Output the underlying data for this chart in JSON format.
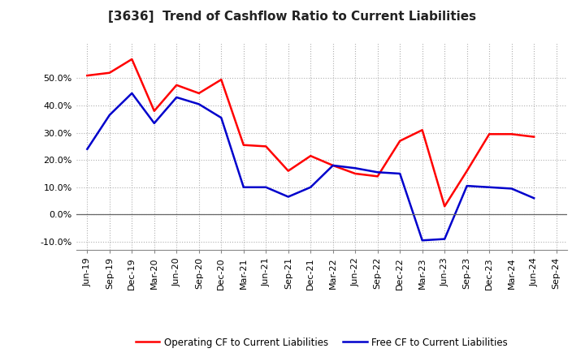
{
  "title": "[3636]  Trend of Cashflow Ratio to Current Liabilities",
  "x_labels": [
    "Jun-19",
    "Sep-19",
    "Dec-19",
    "Mar-20",
    "Jun-20",
    "Sep-20",
    "Dec-20",
    "Mar-21",
    "Jun-21",
    "Sep-21",
    "Dec-21",
    "Mar-22",
    "Jun-22",
    "Sep-22",
    "Dec-22",
    "Mar-23",
    "Jun-23",
    "Sep-23",
    "Dec-23",
    "Mar-24",
    "Jun-24",
    "Sep-24"
  ],
  "operating_cf": [
    51.0,
    52.0,
    57.0,
    38.0,
    47.5,
    44.5,
    49.5,
    25.5,
    25.0,
    16.0,
    21.5,
    18.0,
    15.0,
    14.0,
    27.0,
    31.0,
    3.0,
    16.0,
    29.5,
    29.5,
    28.5,
    null
  ],
  "free_cf": [
    24.0,
    36.5,
    44.5,
    33.5,
    43.0,
    40.5,
    35.5,
    10.0,
    10.0,
    6.5,
    10.0,
    18.0,
    17.0,
    15.5,
    15.0,
    -9.5,
    -9.0,
    10.5,
    10.0,
    9.5,
    6.0,
    null
  ],
  "operating_color": "#ff0000",
  "free_color": "#0000cc",
  "ylim": [
    -0.13,
    0.63
  ],
  "yticks": [
    -0.1,
    0.0,
    0.1,
    0.2,
    0.3,
    0.4,
    0.5
  ],
  "ytick_labels": [
    "-10.0%",
    "0.0%",
    "10.0%",
    "20.0%",
    "30.0%",
    "40.0%",
    "50.0%"
  ],
  "legend_operating": "Operating CF to Current Liabilities",
  "legend_free": "Free CF to Current Liabilities",
  "background_color": "#ffffff",
  "grid_color": "#b0b0b0",
  "title_fontsize": 11,
  "tick_fontsize": 8,
  "line_width": 1.8
}
